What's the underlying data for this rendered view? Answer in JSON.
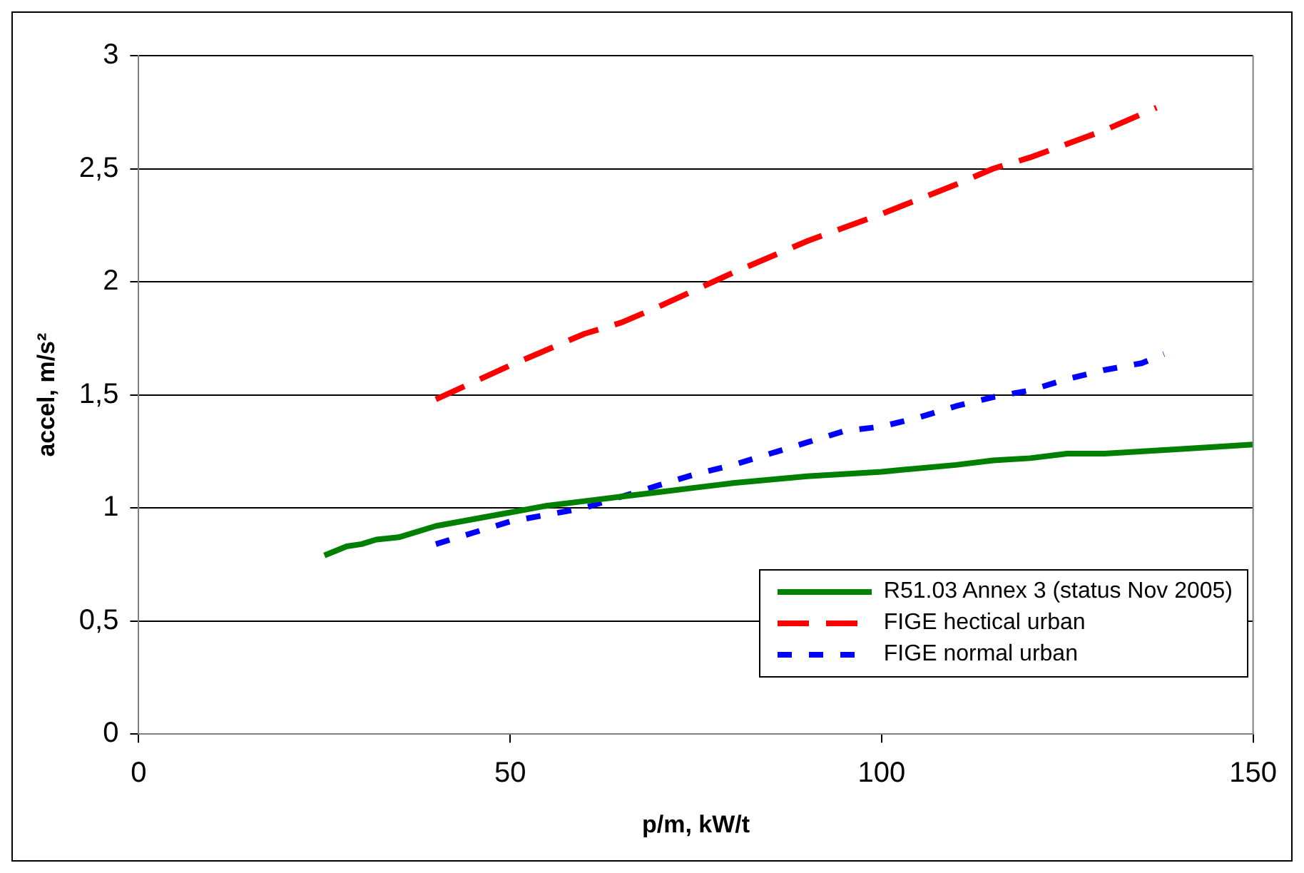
{
  "chart_data": {
    "type": "line",
    "xlabel": "p/m, kW/t",
    "ylabel": "accel, m/s²",
    "xlim": [
      0,
      150
    ],
    "xticks": [
      0,
      50,
      100,
      150
    ],
    "ylim": [
      0,
      3
    ],
    "yticks": [
      0,
      {
        "value": 0.5,
        "label": "0,5"
      },
      1,
      {
        "value": 1.5,
        "label": "1,5"
      },
      2,
      {
        "value": 2.5,
        "label": "2,5"
      },
      3
    ],
    "grid": "y",
    "legend": "bottom right",
    "marker": "none",
    "series": [
      {
        "name": "R51.03 Annex 3 (status Nov 2005)",
        "color": "#008000",
        "line_style": "solid",
        "x": [
          25,
          28,
          30,
          32,
          35,
          40,
          45,
          50,
          55,
          60,
          65,
          70,
          75,
          80,
          90,
          100,
          110,
          115,
          120,
          125,
          130,
          140,
          150
        ],
        "values": [
          0.79,
          0.83,
          0.84,
          0.86,
          0.87,
          0.92,
          0.95,
          0.98,
          1.01,
          1.03,
          1.05,
          1.07,
          1.09,
          1.11,
          1.14,
          1.16,
          1.19,
          1.21,
          1.22,
          1.24,
          1.24,
          1.26,
          1.28
        ]
      },
      {
        "name": "FIGE hectical urban",
        "color": "#ff0000",
        "line_style": "dashed",
        "x": [
          40,
          50,
          60,
          65,
          70,
          80,
          90,
          100,
          110,
          115,
          120,
          130,
          137
        ],
        "values": [
          1.48,
          1.63,
          1.77,
          1.82,
          1.89,
          2.04,
          2.18,
          2.3,
          2.43,
          2.5,
          2.55,
          2.67,
          2.77
        ]
      },
      {
        "name": "FIGE normal urban",
        "color": "#0000ff",
        "line_style": "dotted",
        "x": [
          40,
          45,
          50,
          60,
          65,
          70,
          75,
          80,
          85,
          90,
          95,
          100,
          105,
          110,
          115,
          120,
          125,
          130,
          135,
          138
        ],
        "values": [
          0.84,
          0.89,
          0.94,
          1.0,
          1.05,
          1.1,
          1.15,
          1.19,
          1.24,
          1.29,
          1.34,
          1.36,
          1.4,
          1.45,
          1.49,
          1.52,
          1.57,
          1.61,
          1.64,
          1.68
        ]
      }
    ]
  }
}
